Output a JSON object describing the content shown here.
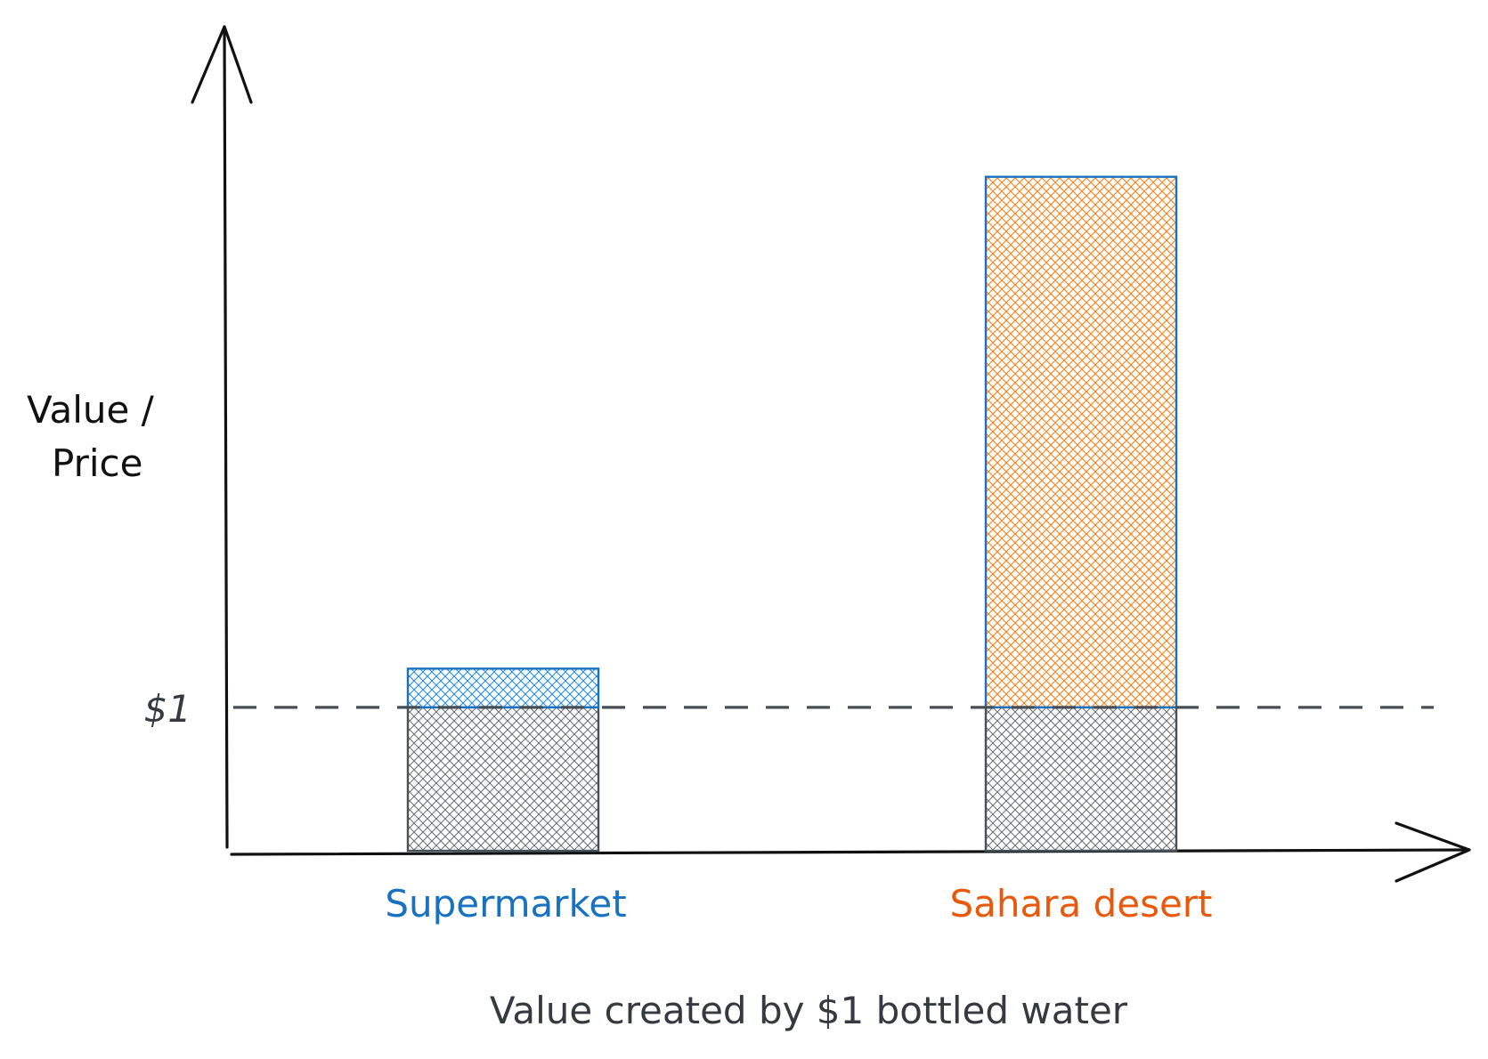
{
  "chart_data": {
    "type": "bar",
    "stacked": true,
    "title": "Value created by $1 bottled water",
    "ylabel_lines": [
      "Value /",
      "Price"
    ],
    "xlabel": "",
    "categories": [
      "Supermarket",
      "Sahara desert"
    ],
    "category_colors": [
      "#1971c2",
      "#e8590c"
    ],
    "series": [
      {
        "values": [
          1,
          1
        ],
        "color": "#6c7178",
        "stroke": "#4a5058"
      },
      {
        "values": [
          0.27,
          3.7
        ],
        "colors": [
          "#228be6",
          "#fd7e14"
        ],
        "strokes": [
          "#1971c2",
          "#1971c2"
        ]
      }
    ],
    "reference_line": {
      "value": 1,
      "label": "$1",
      "style": "dashed"
    },
    "ylim": [
      0,
      5.3
    ],
    "grid": false,
    "legend": "none"
  }
}
